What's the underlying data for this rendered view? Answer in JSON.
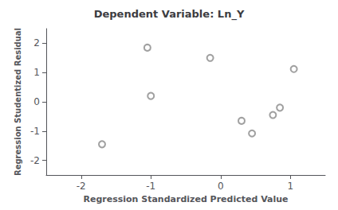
{
  "chart_data": {
    "type": "scatter",
    "title": "Dependent Variable: Ln_Y",
    "xlabel": "Regression Standardized Predicted Value",
    "ylabel": "Regression Studentized Residual",
    "x": [
      -1.7,
      -1.05,
      -1.0,
      -0.15,
      0.3,
      0.45,
      0.75,
      0.85,
      1.05
    ],
    "values": [
      -1.45,
      1.85,
      0.2,
      1.5,
      -0.65,
      -1.08,
      -0.45,
      -0.2,
      1.12
    ],
    "color": "#888888",
    "marker": "circle",
    "xlim": [
      -2.5,
      1.5
    ],
    "ylim": [
      -2.5,
      2.5
    ],
    "xticks": [
      -2,
      -1,
      0,
      1
    ],
    "yticks": [
      -2,
      -1,
      0,
      1,
      2
    ],
    "grid": false
  }
}
